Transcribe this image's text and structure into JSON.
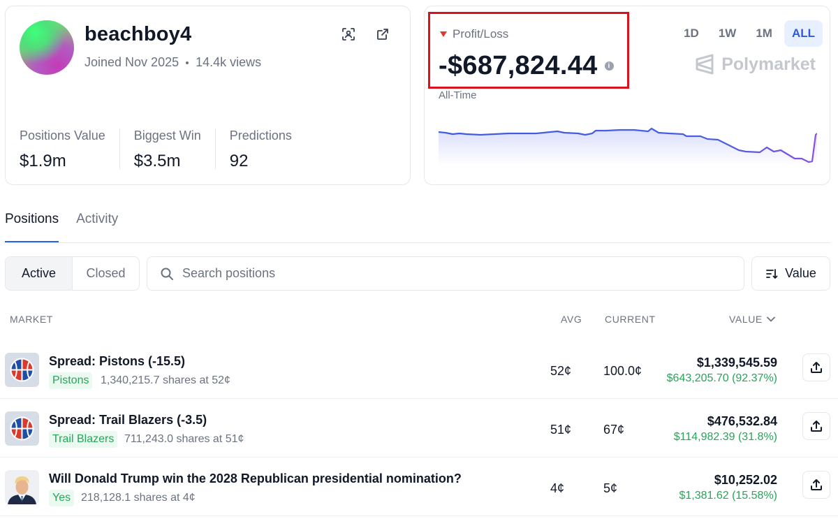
{
  "profile": {
    "username": "beachboy4",
    "joined": "Joined Nov 2025",
    "views": "14.4k views",
    "stats": [
      {
        "label": "Positions Value",
        "value": "$1.9m"
      },
      {
        "label": "Biggest Win",
        "value": "$3.5m"
      },
      {
        "label": "Predictions",
        "value": "92"
      }
    ]
  },
  "pnl": {
    "title": "Profit/Loss",
    "value": "-$687,824.44",
    "period_label": "All-Time",
    "ranges": [
      "1D",
      "1W",
      "1M",
      "ALL"
    ],
    "active_range": "ALL",
    "brand": "Polymarket",
    "line_color": "#4a5fe0"
  },
  "tabs": [
    "Positions",
    "Activity"
  ],
  "filters": {
    "active_label": "Active",
    "closed_label": "Closed",
    "search_placeholder": "Search positions",
    "sort_label": "Value"
  },
  "table": {
    "headers": {
      "market": "MARKET",
      "avg": "AVG",
      "current": "CURRENT",
      "value": "VALUE"
    },
    "rows": [
      {
        "title": "Spread: Pistons (-15.5)",
        "outcome": "Pistons",
        "shares": "1,340,215.7 shares at 52¢",
        "avg": "52¢",
        "current": "100.0¢",
        "value": "$1,339,545.59",
        "gain": "$643,205.70 (92.37%)",
        "thumb": "basketball-icon"
      },
      {
        "title": "Spread: Trail Blazers (-3.5)",
        "outcome": "Trail Blazers",
        "shares": "711,243.0 shares at 51¢",
        "avg": "51¢",
        "current": "67¢",
        "value": "$476,532.84",
        "gain": "$114,982.39 (31.8%)",
        "thumb": "basketball-icon"
      },
      {
        "title": "Will Donald Trump win the 2028 Republican presidential nomination?",
        "outcome": "Yes",
        "shares": "218,128.1 shares at 4¢",
        "avg": "4¢",
        "current": "5¢",
        "value": "$10,252.02",
        "gain": "$1,381.62 (15.58%)",
        "thumb": "portrait-image"
      }
    ]
  }
}
